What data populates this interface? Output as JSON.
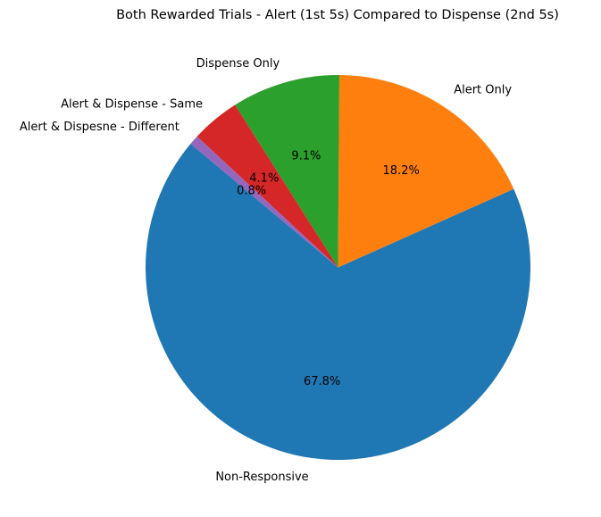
{
  "chart_data": {
    "type": "pie",
    "title": "Both Rewarded Trials - Alert (1st 5s) Compared to Dispense (2nd 5s)",
    "start_angle_deg": 140,
    "direction": "counterclockwise",
    "slices": [
      {
        "label": "Non-Responsive",
        "value": 67.8,
        "pct_label": "67.8%",
        "color": "#1f77b4"
      },
      {
        "label": "Alert Only",
        "value": 18.2,
        "pct_label": "18.2%",
        "color": "#ff7f0e"
      },
      {
        "label": "Dispense Only",
        "value": 9.1,
        "pct_label": "9.1%",
        "color": "#2ca02c"
      },
      {
        "label": "Alert & Dispense - Same",
        "value": 4.1,
        "pct_label": "4.1%",
        "color": "#d62728"
      },
      {
        "label": "Alert & Dispesne - Different",
        "value": 0.8,
        "pct_label": "0.8%",
        "color": "#9467bd"
      }
    ]
  }
}
